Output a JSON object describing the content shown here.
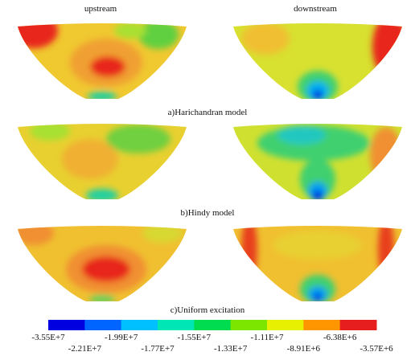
{
  "headers": {
    "left": "upstream",
    "right": "downstream"
  },
  "captions": [
    "a)Harichandran model",
    "b)Hindy model",
    "c)Uniform excitation"
  ],
  "colorbar": {
    "labels": [
      "-3.55E+7",
      "-2.21E+7",
      "-1.99E+7",
      "-1.77E+7",
      "-1.55E+7",
      "-1.33E+7",
      "-1.11E+7",
      "-8.91E+6",
      "-6.38E+6",
      "-3.57E+6"
    ]
  }
}
